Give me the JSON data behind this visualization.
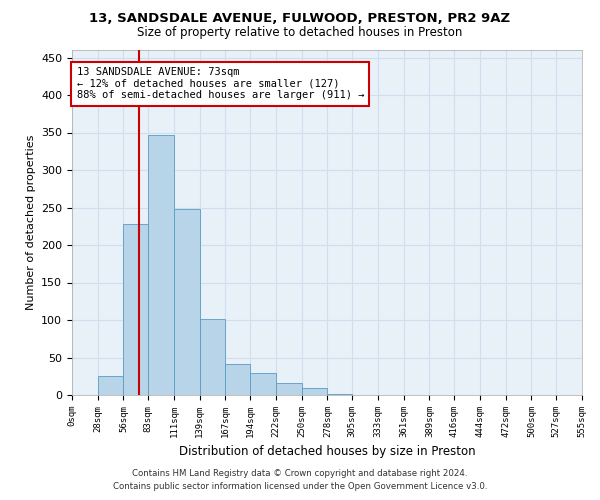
{
  "title": "13, SANDSDALE AVENUE, FULWOOD, PRESTON, PR2 9AZ",
  "subtitle": "Size of property relative to detached houses in Preston",
  "xlabel": "Distribution of detached houses by size in Preston",
  "ylabel": "Number of detached properties",
  "bin_labels": [
    "0sqm",
    "28sqm",
    "56sqm",
    "83sqm",
    "111sqm",
    "139sqm",
    "167sqm",
    "194sqm",
    "222sqm",
    "250sqm",
    "278sqm",
    "305sqm",
    "333sqm",
    "361sqm",
    "389sqm",
    "416sqm",
    "444sqm",
    "472sqm",
    "500sqm",
    "527sqm",
    "555sqm"
  ],
  "bin_edges": [
    0,
    28,
    56,
    83,
    111,
    139,
    167,
    194,
    222,
    250,
    278,
    305,
    333,
    361,
    389,
    416,
    444,
    472,
    500,
    527,
    555
  ],
  "bar_heights": [
    0,
    25,
    228,
    347,
    248,
    101,
    41,
    30,
    16,
    10,
    1,
    0,
    0,
    0,
    0,
    0,
    0,
    0,
    0,
    0
  ],
  "bar_color": "#b8d4e8",
  "bar_edge_color": "#5a9bc4",
  "property_line_x": 73,
  "ylim": [
    0,
    460
  ],
  "yticks": [
    0,
    50,
    100,
    150,
    200,
    250,
    300,
    350,
    400,
    450
  ],
  "annotation_title": "13 SANDSDALE AVENUE: 73sqm",
  "annotation_line1": "← 12% of detached houses are smaller (127)",
  "annotation_line2": "88% of semi-detached houses are larger (911) →",
  "annotation_box_color": "#ffffff",
  "annotation_border_color": "#cc0000",
  "footer_line1": "Contains HM Land Registry data © Crown copyright and database right 2024.",
  "footer_line2": "Contains public sector information licensed under the Open Government Licence v3.0.",
  "grid_color": "#d0dfee",
  "background_color": "#e8f0f8"
}
